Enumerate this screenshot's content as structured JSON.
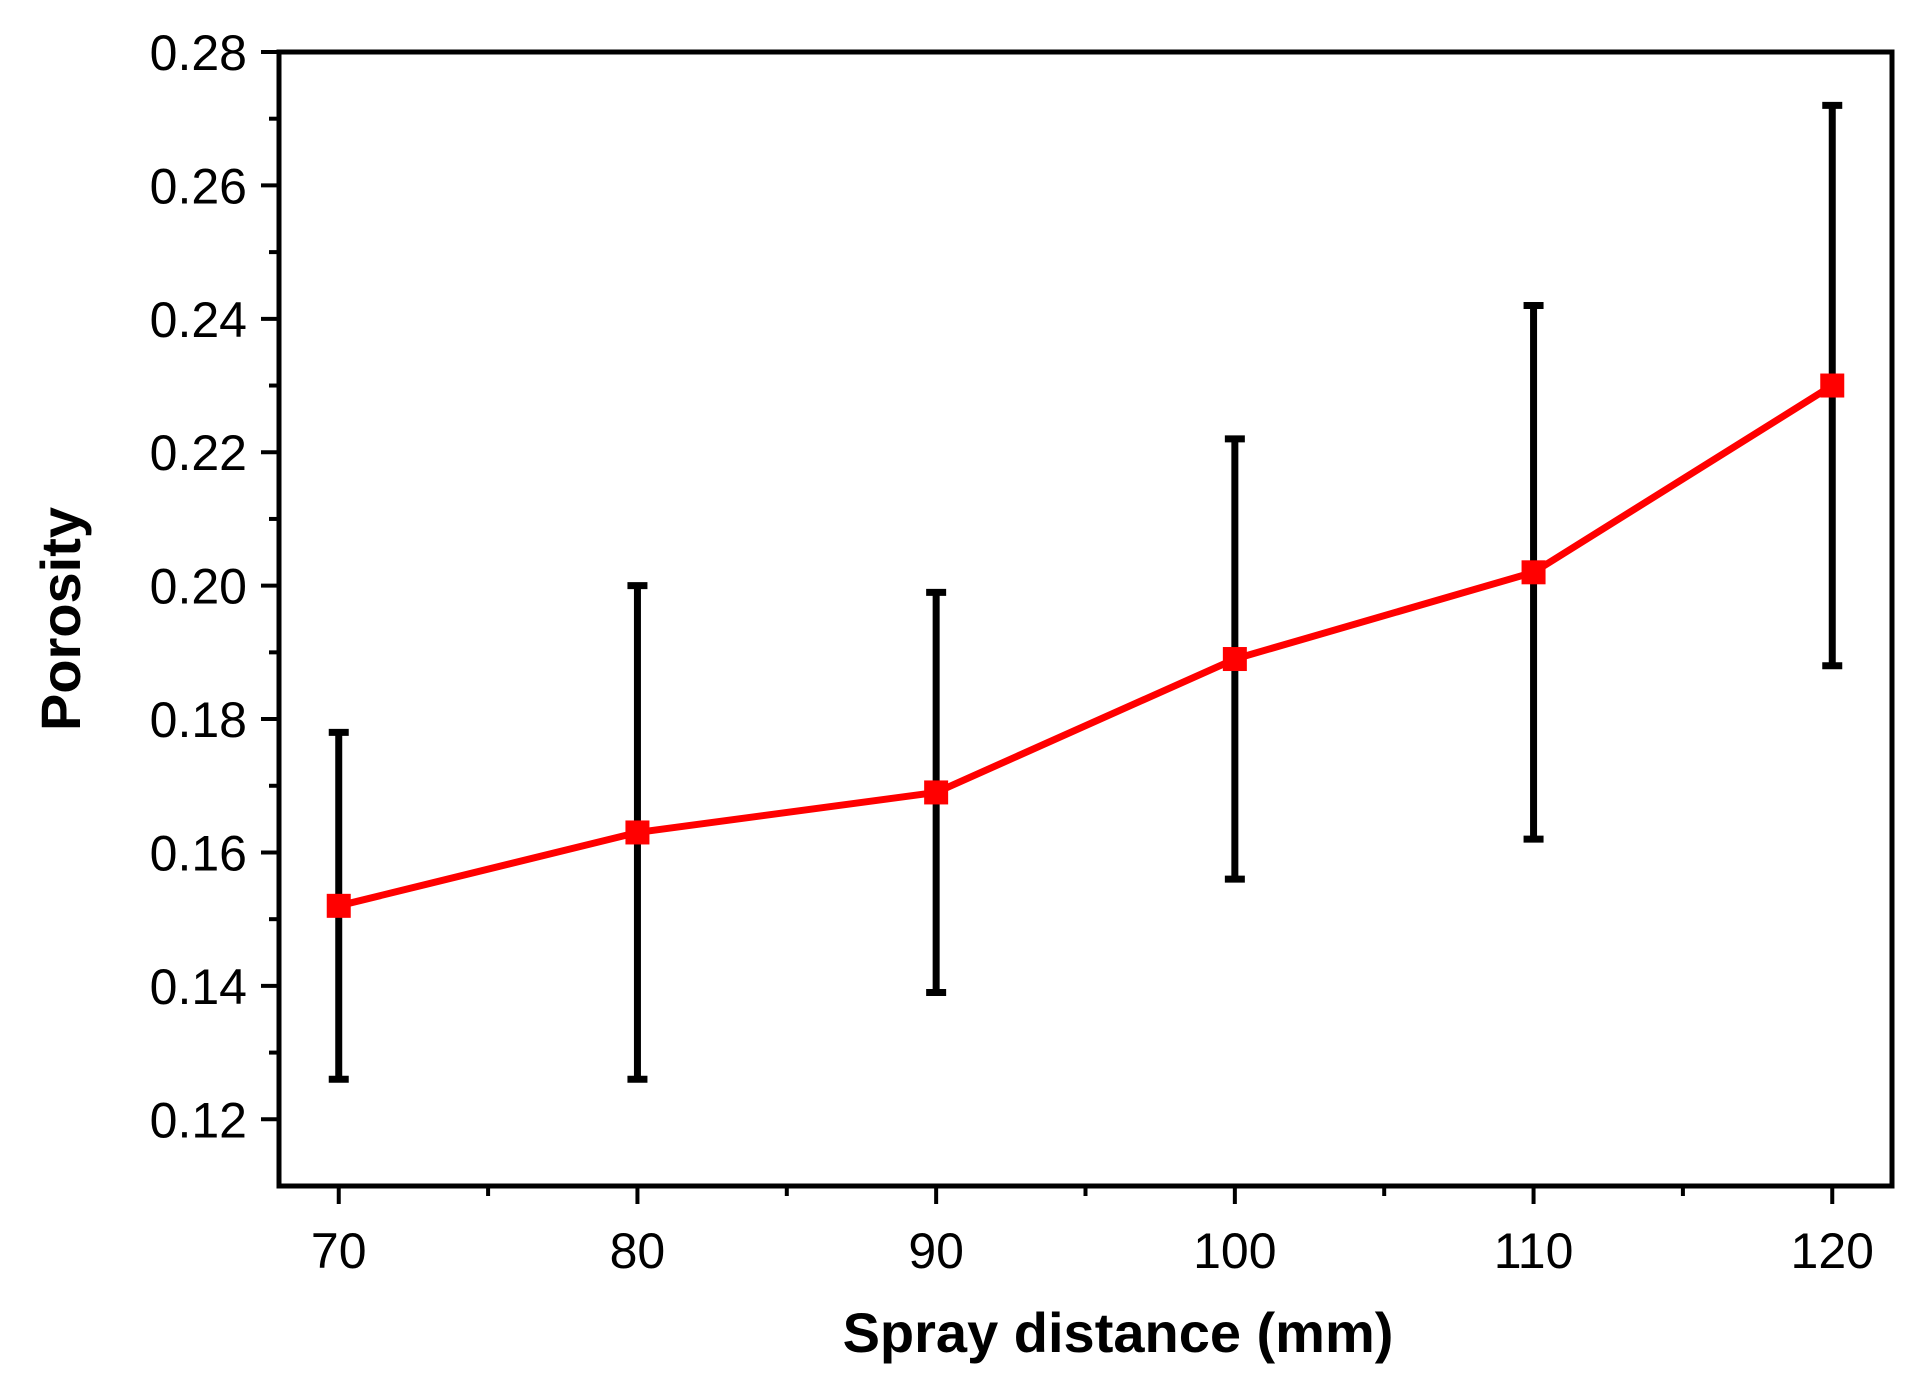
{
  "chart_data": {
    "type": "line",
    "title": "",
    "xlabel": "Spray distance (mm)",
    "ylabel": "Porosity",
    "xlim": [
      68,
      122
    ],
    "ylim": [
      0.11,
      0.28
    ],
    "x_ticks": [
      70,
      80,
      90,
      100,
      110,
      120
    ],
    "x_tick_labels": [
      "70",
      "80",
      "90",
      "100",
      "110",
      "120"
    ],
    "y_ticks": [
      0.12,
      0.14,
      0.16,
      0.18,
      0.2,
      0.22,
      0.24,
      0.26,
      0.28
    ],
    "y_tick_labels": [
      "0.12",
      "0.14",
      "0.16",
      "0.18",
      "0.20",
      "0.22",
      "0.24",
      "0.26",
      "0.28"
    ],
    "grid": false,
    "legend": "none",
    "series": [
      {
        "x": [
          70,
          80,
          90,
          100,
          110,
          120
        ],
        "values": [
          0.152,
          0.163,
          0.169,
          0.189,
          0.202,
          0.23
        ],
        "error_low": [
          0.126,
          0.126,
          0.139,
          0.156,
          0.162,
          0.188
        ],
        "error_high": [
          0.178,
          0.2,
          0.199,
          0.222,
          0.242,
          0.272
        ],
        "color": "#ff0000",
        "marker": "square"
      }
    ],
    "error_bar_color": "#000000"
  }
}
